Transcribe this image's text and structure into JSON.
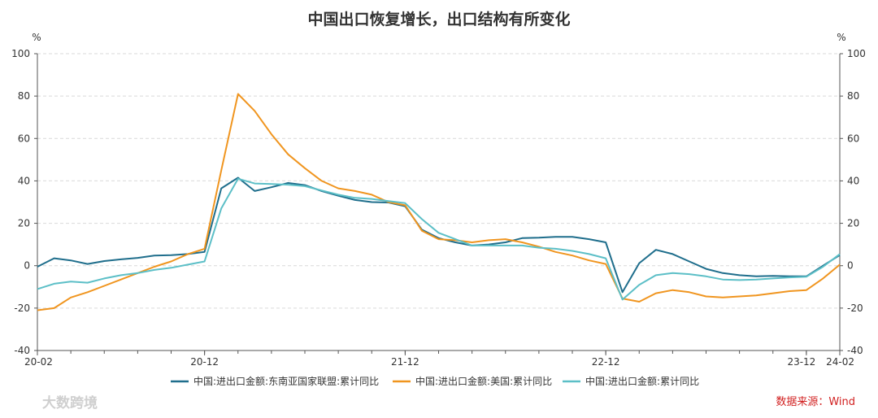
{
  "chart_data": {
    "type": "line",
    "title": "中国出口恢复增长，出口结构有所变化",
    "ylabel_left": "%",
    "ylabel_right": "%",
    "ylim": [
      -40,
      100
    ],
    "yticks": [
      -40,
      -20,
      0,
      20,
      40,
      60,
      80,
      100
    ],
    "grid": true,
    "legend_position": "bottom",
    "x_tick_labels": [
      {
        "label": "20-02",
        "x": "2020-02"
      },
      {
        "label": "20-12",
        "x": "2020-12"
      },
      {
        "label": "21-12",
        "x": "2021-12"
      },
      {
        "label": "22-12",
        "x": "2022-12"
      },
      {
        "label": "23-12",
        "x": "2023-12"
      },
      {
        "label": "24-02",
        "x": "2024-02"
      }
    ],
    "x": [
      "2020-02",
      "2020-03",
      "2020-04",
      "2020-05",
      "2020-06",
      "2020-07",
      "2020-08",
      "2020-09",
      "2020-10",
      "2020-11",
      "2020-12",
      "2021-01",
      "2021-02",
      "2021-03",
      "2021-04",
      "2021-05",
      "2021-06",
      "2021-07",
      "2021-08",
      "2021-09",
      "2021-10",
      "2021-11",
      "2021-12",
      "2022-01",
      "2022-02",
      "2022-03",
      "2022-04",
      "2022-05",
      "2022-06",
      "2022-07",
      "2022-08",
      "2022-09",
      "2022-10",
      "2022-11",
      "2022-12",
      "2023-01",
      "2023-02",
      "2023-03",
      "2023-04",
      "2023-05",
      "2023-06",
      "2023-07",
      "2023-08",
      "2023-09",
      "2023-10",
      "2023-11",
      "2023-12",
      "2024-01",
      "2024-02"
    ],
    "series": [
      {
        "name": "中国:进出口金额:东南亚国家联盟:累计同比",
        "color": "#1f6e8c",
        "values": [
          -0.5,
          3.5,
          2.5,
          0.8,
          2.2,
          3.0,
          3.7,
          4.8,
          5.0,
          5.5,
          6.5,
          36.5,
          41.5,
          35.2,
          37.0,
          39.0,
          38.0,
          35.2,
          33.0,
          31.0,
          30.0,
          29.8,
          28.0,
          17.0,
          13.0,
          11.0,
          9.5,
          10.0,
          11.0,
          13.0,
          13.2,
          13.6,
          13.6,
          12.5,
          11.0,
          -12.5,
          1.2,
          7.5,
          5.5,
          2.0,
          -1.5,
          -3.5,
          -4.5,
          -5.0,
          -4.8,
          -5.0,
          -5.0,
          0.0,
          5.0
        ]
      },
      {
        "name": "中国:进出口金额:美国:累计同比",
        "color": "#f0951f",
        "values": [
          -21.0,
          -20.0,
          -15.0,
          -12.5,
          -9.5,
          -6.5,
          -3.5,
          -0.5,
          2.0,
          5.5,
          8.0,
          45.0,
          81.0,
          73.0,
          62.0,
          52.5,
          46.0,
          40.0,
          36.5,
          35.2,
          33.5,
          30.0,
          28.5,
          16.5,
          12.5,
          12.0,
          11.0,
          12.0,
          12.5,
          11.0,
          9.0,
          6.5,
          4.8,
          2.5,
          0.8,
          -15.5,
          -17.0,
          -13.0,
          -11.5,
          -12.5,
          -14.5,
          -15.0,
          -14.5,
          -14.0,
          -13.0,
          -12.0,
          -11.5,
          -6.0,
          0.5
        ]
      },
      {
        "name": "中国:进出口金额:累计同比",
        "color": "#5cbfc7",
        "values": [
          -11.0,
          -8.5,
          -7.5,
          -8.0,
          -6.0,
          -4.5,
          -3.5,
          -2.0,
          -1.0,
          0.5,
          2.0,
          27.0,
          41.0,
          38.8,
          38.5,
          38.2,
          37.5,
          35.5,
          33.5,
          32.0,
          31.5,
          30.5,
          29.5,
          22.0,
          15.5,
          12.5,
          9.5,
          9.5,
          9.5,
          9.5,
          8.5,
          8.0,
          7.0,
          5.5,
          3.5,
          -16.0,
          -9.0,
          -4.5,
          -3.5,
          -4.0,
          -5.0,
          -6.5,
          -6.8,
          -6.5,
          -6.0,
          -5.5,
          -5.2,
          -0.5,
          5.5
        ]
      }
    ],
    "source": "数据来源：Wind",
    "watermark": "大数跨境"
  }
}
